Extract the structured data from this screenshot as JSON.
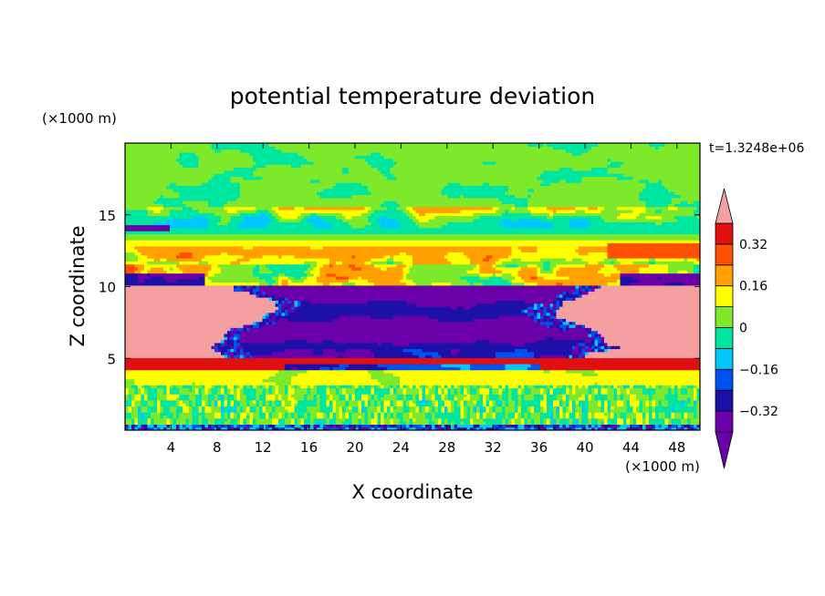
{
  "chart_data": {
    "type": "heatmap",
    "title": "potential temperature deviation",
    "xlabel": "X coordinate",
    "ylabel": "Z coordinate",
    "x_unit": "(×1000 m)",
    "y_unit": "(×1000 m)",
    "time_label": "t=1.3248e+06",
    "x_range": [
      0,
      50
    ],
    "y_range": [
      0,
      20
    ],
    "x_ticks": [
      "4",
      "8",
      "12",
      "16",
      "20",
      "24",
      "28",
      "32",
      "36",
      "40",
      "44",
      "48"
    ],
    "y_ticks": [
      "5",
      "10",
      "15"
    ],
    "x_tick_values": [
      4,
      8,
      12,
      16,
      20,
      24,
      28,
      32,
      36,
      40,
      44,
      48
    ],
    "y_tick_values": [
      5,
      10,
      15
    ],
    "colorbar": {
      "labels": [
        "0.32",
        "0.16",
        "0",
        "−0.16",
        "−0.32"
      ],
      "label_values": [
        0.32,
        0.16,
        0,
        -0.16,
        -0.32
      ],
      "range": [
        -0.4,
        0.4
      ],
      "levels": [
        -0.4,
        -0.32,
        -0.24,
        -0.16,
        -0.08,
        0,
        0.08,
        0.16,
        0.24,
        0.32,
        0.4
      ],
      "colors": [
        "#6a00a8",
        "#1d10a8",
        "#0050f0",
        "#00c8ff",
        "#00e6a0",
        "#7ee82a",
        "#ffff00",
        "#ffa000",
        "#ff5000",
        "#e01010",
        "#f5a0a0"
      ],
      "under_color": "#6a00a8",
      "over_color": "#f5a0a0"
    },
    "layers": [
      {
        "z": [
          0,
          3.2
        ],
        "value": 0.05,
        "note": "noisy green/cyan band"
      },
      {
        "z": [
          3.2,
          4.2
        ],
        "value": 0.08,
        "note": "yellow/green band"
      },
      {
        "z": [
          4.2,
          5.0
        ],
        "value": 0.34,
        "note": "red/orange band"
      },
      {
        "z": [
          5.0,
          10.0
        ],
        "value": -0.37,
        "note": "purple core (center) / pink (edges)"
      },
      {
        "z": [
          10.0,
          11.5
        ],
        "value": 0.1,
        "note": "green/yellow/orange band"
      },
      {
        "z": [
          11.5,
          15.5
        ],
        "value": 0.12,
        "note": "green/yellow/orange/red banding"
      },
      {
        "z": [
          15.5,
          20
        ],
        "value": 0.02,
        "note": "green aloft"
      }
    ]
  }
}
